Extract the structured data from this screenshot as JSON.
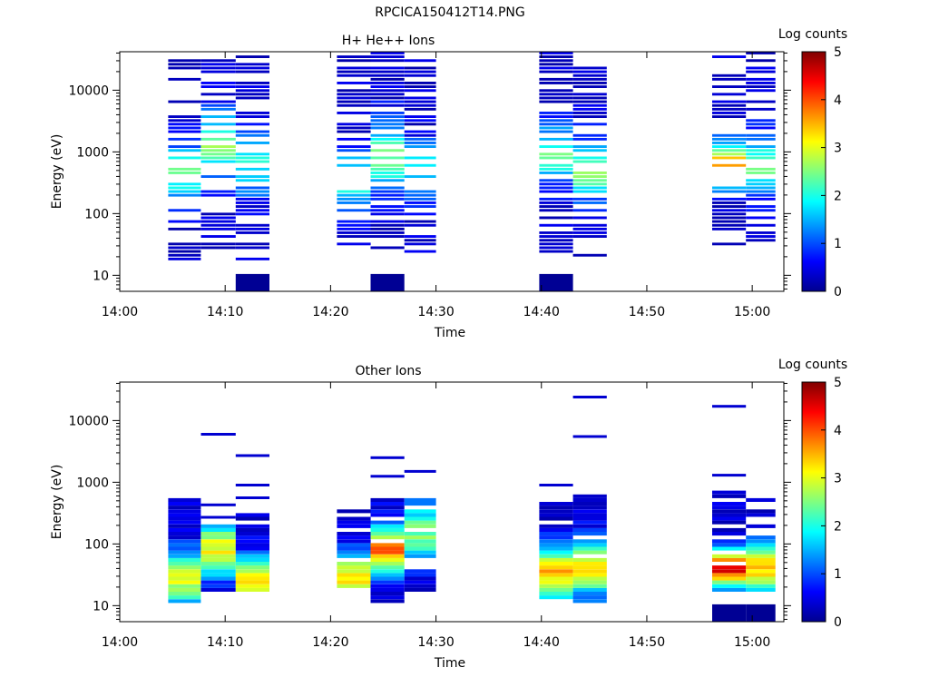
{
  "figure": {
    "title": "RPCICA150412T14.PNG"
  },
  "chart_data": [
    {
      "type": "heatmap",
      "title": "H+ He++ Ions",
      "xlabel": "Time",
      "ylabel": "Energy (eV)",
      "x_ticks": [
        "14:00",
        "14:10",
        "14:20",
        "14:30",
        "14:40",
        "14:50",
        "15:00"
      ],
      "y_ticks": [
        "10",
        "100",
        "1000",
        "10000"
      ],
      "y_scale": "log",
      "y_range": [
        5.5,
        42000
      ],
      "x_range": [
        "14:00",
        "15:03"
      ],
      "colorbar": {
        "label": "Log counts",
        "ticks": [
          "0",
          "1",
          "2",
          "3",
          "4",
          "5"
        ],
        "range": [
          0,
          5
        ]
      },
      "columns": [
        {
          "start": "14:04.6",
          "end": "14:07.7"
        },
        {
          "start": "14:07.7",
          "end": "14:11.0"
        },
        {
          "start": "14:11.0",
          "end": "14:14.2"
        },
        {
          "start": "14:20.6",
          "end": "14:23.8"
        },
        {
          "start": "14:23.8",
          "end": "14:27.0"
        },
        {
          "start": "14:27.0",
          "end": "14:30.0"
        },
        {
          "start": "14:39.8",
          "end": "14:43.0"
        },
        {
          "start": "14:43.0",
          "end": "14:46.2"
        },
        {
          "start": "14:56.2",
          "end": "14:59.4"
        },
        {
          "start": "14:59.4",
          "end": "15:02.2"
        }
      ]
    },
    {
      "type": "heatmap",
      "title": "Other Ions",
      "xlabel": "Time",
      "ylabel": "Energy (eV)",
      "x_ticks": [
        "14:00",
        "14:10",
        "14:20",
        "14:30",
        "14:40",
        "14:50",
        "15:00"
      ],
      "y_ticks": [
        "10",
        "100",
        "1000",
        "10000"
      ],
      "y_scale": "log",
      "y_range": [
        5.5,
        42000
      ],
      "x_range": [
        "14:00",
        "15:03"
      ],
      "colorbar": {
        "label": "Log counts",
        "ticks": [
          "0",
          "1",
          "2",
          "3",
          "4",
          "5"
        ],
        "range": [
          0,
          5
        ]
      },
      "columns": [
        {
          "start": "14:04.6",
          "end": "14:07.7"
        },
        {
          "start": "14:07.7",
          "end": "14:11.0"
        },
        {
          "start": "14:11.0",
          "end": "14:14.2"
        },
        {
          "start": "14:20.6",
          "end": "14:23.8"
        },
        {
          "start": "14:23.8",
          "end": "14:27.0"
        },
        {
          "start": "14:27.0",
          "end": "14:30.0"
        },
        {
          "start": "14:39.8",
          "end": "14:43.0"
        },
        {
          "start": "14:43.0",
          "end": "14:46.2"
        },
        {
          "start": "14:56.2",
          "end": "14:59.4"
        },
        {
          "start": "14:59.4",
          "end": "15:02.2"
        }
      ]
    }
  ]
}
